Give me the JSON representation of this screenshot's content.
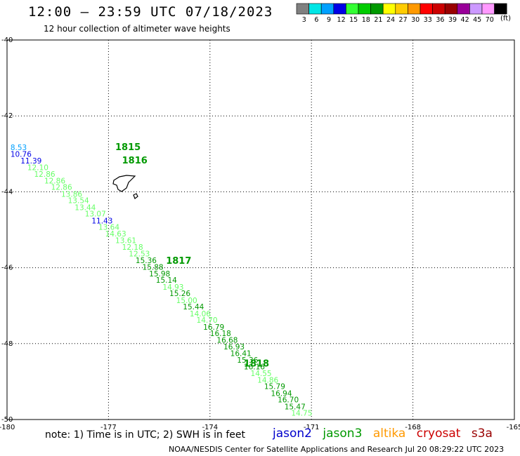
{
  "header": {
    "title": "12:00 — 23:59 UTC 07/18/2023",
    "subtitle": "12 hour collection of altimeter wave heights"
  },
  "colorbar": {
    "unit": "(ft)",
    "bins": [
      {
        "label": "3",
        "color": "#808080"
      },
      {
        "label": "6",
        "color": "#00e6e6"
      },
      {
        "label": "9",
        "color": "#00a0ff"
      },
      {
        "label": "12",
        "color": "#0000e6"
      },
      {
        "label": "15",
        "color": "#33ff33"
      },
      {
        "label": "18",
        "color": "#00cc00"
      },
      {
        "label": "21",
        "color": "#009900"
      },
      {
        "label": "24",
        "color": "#ffff00"
      },
      {
        "label": "27",
        "color": "#ffcc00"
      },
      {
        "label": "30",
        "color": "#ff9900"
      },
      {
        "label": "33",
        "color": "#ff0000"
      },
      {
        "label": "36",
        "color": "#cc0000"
      },
      {
        "label": "39",
        "color": "#990000"
      },
      {
        "label": "42",
        "color": "#990099"
      },
      {
        "label": "45",
        "color": "#cc99ff"
      },
      {
        "label": "70",
        "color": "#ff99ff"
      },
      {
        "label": "",
        "color": "#000000"
      }
    ]
  },
  "footer": {
    "note": "note:  1) Time is in UTC; 2) SWH is in feet",
    "satellites": [
      {
        "name": "jason2",
        "color": "#0000cc"
      },
      {
        "name": "jason3",
        "color": "#009900"
      },
      {
        "name": "altika",
        "color": "#ff9900"
      },
      {
        "name": "cryosat",
        "color": "#cc0000"
      },
      {
        "name": "s3a",
        "color": "#990000"
      }
    ],
    "credit": "NOAA/NESDIS Center for Satellite Applications and Research    Jul 20 08:29:22 UTC 2023"
  },
  "chart_data": {
    "type": "scatter",
    "xlim": [
      -180,
      -165
    ],
    "ylim": [
      -50,
      -40
    ],
    "x_ticks": [
      -180,
      -177,
      -174,
      -171,
      -168,
      -165
    ],
    "x_tick_labels": [
      "-180",
      "-177",
      "-174",
      "-171",
      "-168",
      "-165"
    ],
    "y_ticks": [
      -40,
      -42,
      -44,
      -46,
      -48,
      -50
    ],
    "y_tick_labels": [
      "-40",
      "-42",
      "-44",
      "-46",
      "-48",
      "-50"
    ],
    "grid": true,
    "time_labels": [
      {
        "text": "1815",
        "lon": -176.8,
        "lat": -42.9
      },
      {
        "text": "1816",
        "lon": -176.6,
        "lat": -43.25
      },
      {
        "text": "1817",
        "lon": -175.3,
        "lat": -45.9
      },
      {
        "text": "1818",
        "lon": -173.0,
        "lat": -48.6
      }
    ],
    "points": [
      {
        "lon": -179.9,
        "lat": -42.9,
        "swh": "8.53",
        "color": "#00a0ff"
      },
      {
        "lon": -179.9,
        "lat": -43.08,
        "swh": "10.76",
        "color": "#0000e6"
      },
      {
        "lon": -179.6,
        "lat": -43.25,
        "swh": "11.39",
        "color": "#0000e6"
      },
      {
        "lon": -179.4,
        "lat": -43.43,
        "swh": "12.10",
        "color": "#66ff66"
      },
      {
        "lon": -179.2,
        "lat": -43.6,
        "swh": "12.86",
        "color": "#66ff66"
      },
      {
        "lon": -178.9,
        "lat": -43.78,
        "swh": "12.86",
        "color": "#66ff66"
      },
      {
        "lon": -178.7,
        "lat": -43.95,
        "swh": "12.86",
        "color": "#66ff66"
      },
      {
        "lon": -178.4,
        "lat": -44.13,
        "swh": "13.86",
        "color": "#66ff66"
      },
      {
        "lon": -178.2,
        "lat": -44.3,
        "swh": "13.54",
        "color": "#66ff66"
      },
      {
        "lon": -178.0,
        "lat": -44.48,
        "swh": "13.44",
        "color": "#66ff66"
      },
      {
        "lon": -177.7,
        "lat": -44.65,
        "swh": "13.07",
        "color": "#66ff66"
      },
      {
        "lon": -177.5,
        "lat": -44.83,
        "swh": "11.43",
        "color": "#0000e6"
      },
      {
        "lon": -177.3,
        "lat": -45.0,
        "swh": "13.64",
        "color": "#66ff66"
      },
      {
        "lon": -177.1,
        "lat": -45.18,
        "swh": "14.63",
        "color": "#66ff66"
      },
      {
        "lon": -176.8,
        "lat": -45.35,
        "swh": "13.61",
        "color": "#66ff66"
      },
      {
        "lon": -176.6,
        "lat": -45.53,
        "swh": "12.18",
        "color": "#66ff66"
      },
      {
        "lon": -176.4,
        "lat": -45.7,
        "swh": "12.53",
        "color": "#66ff66"
      },
      {
        "lon": -176.2,
        "lat": -45.88,
        "swh": "15.36",
        "color": "#009900"
      },
      {
        "lon": -176.0,
        "lat": -46.05,
        "swh": "15.88",
        "color": "#009900"
      },
      {
        "lon": -175.8,
        "lat": -46.23,
        "swh": "15.98",
        "color": "#009900"
      },
      {
        "lon": -175.6,
        "lat": -46.4,
        "swh": "15.14",
        "color": "#009900"
      },
      {
        "lon": -175.4,
        "lat": -46.58,
        "swh": "14.93",
        "color": "#66ff66"
      },
      {
        "lon": -175.2,
        "lat": -46.75,
        "swh": "15.26",
        "color": "#009900"
      },
      {
        "lon": -175.0,
        "lat": -46.93,
        "swh": "15.00",
        "color": "#66ff66"
      },
      {
        "lon": -174.8,
        "lat": -47.1,
        "swh": "15.44",
        "color": "#009900"
      },
      {
        "lon": -174.6,
        "lat": -47.28,
        "swh": "14.06",
        "color": "#66ff66"
      },
      {
        "lon": -174.4,
        "lat": -47.45,
        "swh": "14.70",
        "color": "#66ff66"
      },
      {
        "lon": -174.2,
        "lat": -47.63,
        "swh": "16.79",
        "color": "#009900"
      },
      {
        "lon": -174.0,
        "lat": -47.8,
        "swh": "16.18",
        "color": "#009900"
      },
      {
        "lon": -173.8,
        "lat": -47.98,
        "swh": "16.68",
        "color": "#009900"
      },
      {
        "lon": -173.6,
        "lat": -48.15,
        "swh": "16.93",
        "color": "#009900"
      },
      {
        "lon": -173.4,
        "lat": -48.33,
        "swh": "16.41",
        "color": "#009900"
      },
      {
        "lon": -173.2,
        "lat": -48.5,
        "swh": "15.36",
        "color": "#009900"
      },
      {
        "lon": -173.0,
        "lat": -48.68,
        "swh": "16.16",
        "color": "#009900"
      },
      {
        "lon": -172.8,
        "lat": -48.85,
        "swh": "14.55",
        "color": "#66ff66"
      },
      {
        "lon": -172.6,
        "lat": -49.03,
        "swh": "14.86",
        "color": "#66ff66"
      },
      {
        "lon": -172.4,
        "lat": -49.2,
        "swh": "15.79",
        "color": "#009900"
      },
      {
        "lon": -172.2,
        "lat": -49.38,
        "swh": "16.94",
        "color": "#009900"
      },
      {
        "lon": -172.0,
        "lat": -49.55,
        "swh": "16.70",
        "color": "#009900"
      },
      {
        "lon": -171.8,
        "lat": -49.73,
        "swh": "15.47",
        "color": "#009900"
      },
      {
        "lon": -171.6,
        "lat": -49.9,
        "swh": "14.75",
        "color": "#66ff66"
      }
    ]
  }
}
